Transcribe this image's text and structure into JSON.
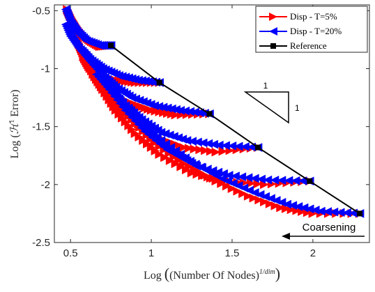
{
  "chart_data": {
    "type": "line",
    "title": "",
    "xlabel": "Log ((Number Of Nodes)^{1/dim})",
    "ylabel": "Log (H^1 Error)",
    "xlim": [
      0.4,
      2.35
    ],
    "ylim": [
      -2.5,
      -0.45
    ],
    "x_ticks": [
      "0.5",
      "1",
      "1.5",
      "2"
    ],
    "y_ticks": [
      "-0.5",
      "-1",
      "-1.5",
      "-2",
      "-2.5"
    ],
    "grid": false,
    "legend_position": "top-right",
    "legend": [
      "Disp - T=5%",
      "Disp - T=20%",
      "Reference"
    ],
    "colors": {
      "t5": "#ff0000",
      "t20": "#0000ff",
      "reference": "#000000"
    },
    "reference": {
      "x": [
        2.29,
        1.98,
        1.66,
        1.36,
        1.05,
        0.75
      ],
      "y": [
        -2.25,
        -1.97,
        -1.68,
        -1.39,
        -1.12,
        -0.8
      ]
    },
    "series": [
      {
        "name": "Disp - T=5%",
        "branches": [
          {
            "x": [
              0.75,
              0.68,
              0.62,
              0.57,
              0.53,
              0.5,
              0.48
            ],
            "y": [
              -0.8,
              -0.81,
              -0.76,
              -0.7,
              -0.62,
              -0.55,
              -0.49
            ]
          },
          {
            "x": [
              1.05,
              0.9,
              0.78,
              0.68,
              0.62,
              0.58,
              0.55,
              0.52
            ],
            "y": [
              -1.12,
              -1.12,
              -1.1,
              -1.05,
              -0.98,
              -0.88,
              -0.78,
              -0.68
            ]
          },
          {
            "x": [
              1.36,
              1.15,
              1.0,
              0.88,
              0.76,
              0.68,
              0.62,
              0.58
            ],
            "y": [
              -1.39,
              -1.4,
              -1.36,
              -1.3,
              -1.22,
              -1.12,
              -1.0,
              -0.9
            ]
          },
          {
            "x": [
              1.66,
              1.4,
              1.2,
              1.05,
              0.92,
              0.8,
              0.7,
              0.64
            ],
            "y": [
              -1.68,
              -1.72,
              -1.68,
              -1.6,
              -1.48,
              -1.34,
              -1.18,
              -1.05
            ]
          },
          {
            "x": [
              1.98,
              1.7,
              1.45,
              1.25,
              1.05,
              0.9,
              0.78,
              0.7
            ],
            "y": [
              -1.97,
              -2.0,
              -1.97,
              -1.9,
              -1.74,
              -1.56,
              -1.36,
              -1.18
            ]
          },
          {
            "x": [
              2.29,
              2.0,
              1.8,
              1.6,
              1.4,
              1.2,
              1.02,
              0.88,
              0.76,
              0.68
            ],
            "y": [
              -2.25,
              -2.25,
              -2.2,
              -2.1,
              -1.97,
              -1.82,
              -1.64,
              -1.44,
              -1.24,
              -1.05
            ]
          }
        ]
      },
      {
        "name": "Disp - T=20%",
        "branches": [
          {
            "x": [
              0.75,
              0.68,
              0.6,
              0.54,
              0.5,
              0.47
            ],
            "y": [
              -0.8,
              -0.8,
              -0.76,
              -0.68,
              -0.6,
              -0.49
            ]
          },
          {
            "x": [
              1.05,
              0.92,
              0.8,
              0.7,
              0.62,
              0.55,
              0.5,
              0.47
            ],
            "y": [
              -1.12,
              -1.1,
              -1.06,
              -1.0,
              -0.92,
              -0.82,
              -0.72,
              -0.62
            ]
          },
          {
            "x": [
              1.36,
              1.18,
              1.02,
              0.88,
              0.78,
              0.7,
              0.63,
              0.57
            ],
            "y": [
              -1.39,
              -1.36,
              -1.32,
              -1.25,
              -1.16,
              -1.06,
              -0.95,
              -0.85
            ]
          },
          {
            "x": [
              1.66,
              1.42,
              1.22,
              1.06,
              0.94,
              0.84,
              0.74,
              0.66
            ],
            "y": [
              -1.68,
              -1.66,
              -1.62,
              -1.55,
              -1.44,
              -1.32,
              -1.18,
              -1.05
            ]
          },
          {
            "x": [
              1.98,
              1.72,
              1.48,
              1.28,
              1.1,
              0.96,
              0.84,
              0.74
            ],
            "y": [
              -1.97,
              -1.96,
              -1.92,
              -1.84,
              -1.7,
              -1.54,
              -1.36,
              -1.18
            ]
          },
          {
            "x": [
              2.29,
              2.05,
              1.84,
              1.64,
              1.44,
              1.24,
              1.06,
              0.92,
              0.8,
              0.7
            ],
            "y": [
              -2.25,
              -2.23,
              -2.17,
              -2.07,
              -1.95,
              -1.8,
              -1.62,
              -1.44,
              -1.26,
              -1.08
            ]
          }
        ]
      }
    ],
    "slope_triangle": {
      "horizontal_label": "1",
      "vertical_label": "1"
    },
    "annotation": "Coarsening"
  }
}
